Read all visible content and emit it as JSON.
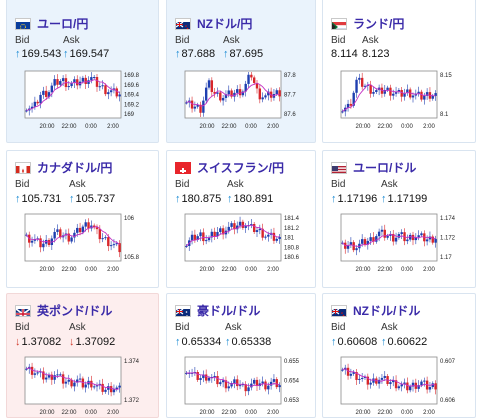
{
  "labels": {
    "bid": "Bid",
    "ask": "Ask"
  },
  "colors": {
    "up_arrow": "#1a8ad4",
    "down_arrow": "#d03a2a",
    "pair_title": "#3a2aa8",
    "candle_up": "#1f3fb0",
    "candle_down": "#d8262a",
    "moving_average": "#c431c4"
  },
  "cards": [
    {
      "pair": "ユーロ/円",
      "flag": "eu-flag-icon",
      "bid": "169.543",
      "ask": "169.547",
      "trend": "up",
      "y_ticks": [
        "169.8",
        "169.6",
        "169.4",
        "169.2",
        "169"
      ],
      "x_ticks": [
        "20:00",
        "22:00",
        "0:00",
        "2:00"
      ]
    },
    {
      "pair": "NZドル/円",
      "flag": "nz-flag-icon",
      "bid": "87.688",
      "ask": "87.695",
      "trend": "up",
      "y_ticks": [
        "87.8",
        "87.7",
        "87.6"
      ],
      "x_ticks": [
        "20:00",
        "22:00",
        "0:00",
        "2:00"
      ]
    },
    {
      "pair": "ランド/円",
      "flag": "za-flag-icon",
      "bid": "8.114",
      "ask": "8.123",
      "trend": "none",
      "y_ticks": [
        "8.15",
        "8.1"
      ],
      "x_ticks": [
        "20:00",
        "22:00",
        "0:00",
        "2:00"
      ]
    },
    {
      "pair": "カナダドル/円",
      "flag": "ca-flag-icon",
      "bid": "105.731",
      "ask": "105.737",
      "trend": "up",
      "y_ticks": [
        "106",
        "105.8"
      ],
      "x_ticks": [
        "20:00",
        "22:00",
        "0:00",
        "2:00"
      ]
    },
    {
      "pair": "スイスフラン/円",
      "flag": "ch-flag-icon",
      "bid": "180.875",
      "ask": "180.891",
      "trend": "up",
      "y_ticks": [
        "181.4",
        "181.2",
        "181",
        "180.8",
        "180.6"
      ],
      "x_ticks": [
        "20:00",
        "22:00",
        "0:00",
        "2:00"
      ]
    },
    {
      "pair": "ユーロ/ドル",
      "flag": "us-flag-icon",
      "bid": "1.17196",
      "ask": "1.17199",
      "trend": "up",
      "y_ticks": [
        "1.174",
        "1.172",
        "1.17"
      ],
      "x_ticks": [
        "20:00",
        "22:00",
        "0:00",
        "2:00"
      ]
    },
    {
      "pair": "英ポンド/ドル",
      "flag": "gb-flag-icon",
      "bid": "1.37082",
      "ask": "1.37092",
      "trend": "down",
      "y_ticks": [
        "1.374",
        "1.372"
      ],
      "x_ticks": [
        "20:00",
        "22:00",
        "0:00",
        "2:00"
      ]
    },
    {
      "pair": "豪ドル/ドル",
      "flag": "au-flag-icon",
      "bid": "0.65334",
      "ask": "0.65338",
      "trend": "up",
      "y_ticks": [
        "0.655",
        "0.654",
        "0.653"
      ],
      "x_ticks": [
        "20:00",
        "22:00",
        "0:00",
        "2:00"
      ]
    },
    {
      "pair": "NZドル/ドル",
      "flag": "nz-flag-icon",
      "bid": "0.60608",
      "ask": "0.60622",
      "trend": "up",
      "y_ticks": [
        "0.607",
        "0.606"
      ],
      "x_ticks": [
        "20:00",
        "22:00",
        "0:00",
        "2:00"
      ]
    }
  ]
}
